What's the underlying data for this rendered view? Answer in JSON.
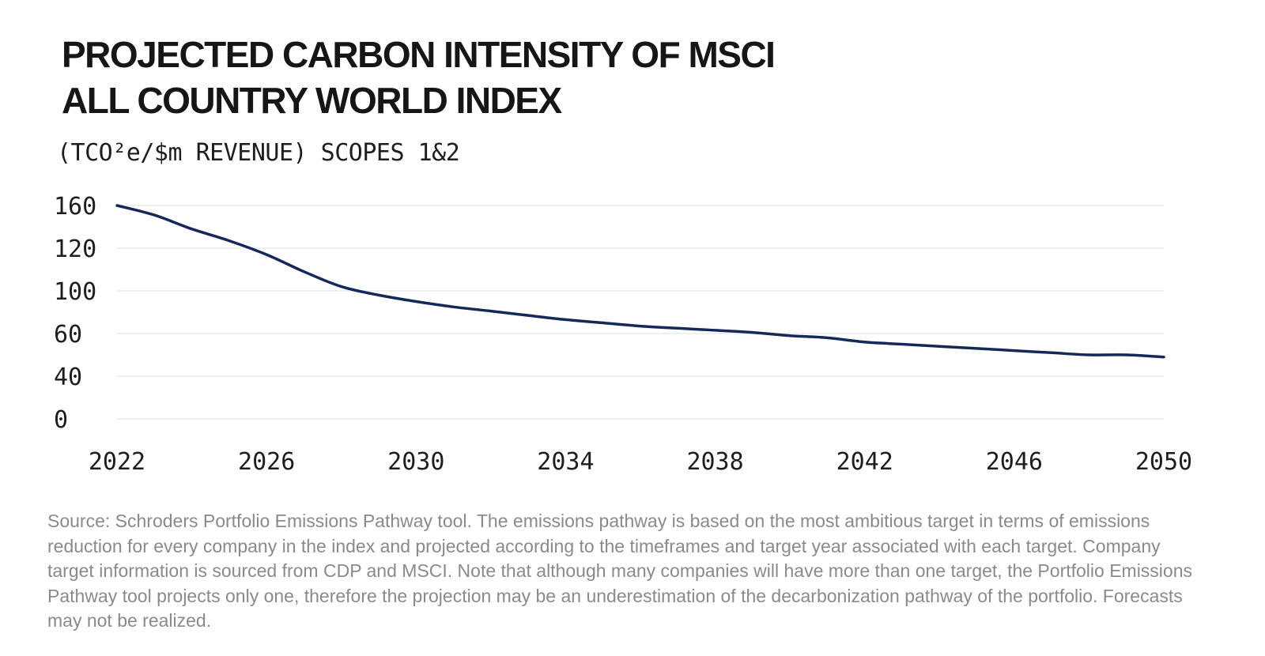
{
  "chart_data": {
    "type": "line",
    "title_lines": [
      "PROJECTED CARBON INTENSITY OF MSCI",
      "ALL COUNTRY WORLD INDEX"
    ],
    "subtitle": "(TCO²e/$m REVENUE) SCOPES 1&2",
    "y_tick_labels": [
      "160",
      "120",
      "100",
      "60",
      "40",
      "0"
    ],
    "x_tick_labels": [
      "2022",
      "2026",
      "2030",
      "2034",
      "2038",
      "2042",
      "2046",
      "2050"
    ],
    "grid": "horizontal",
    "line_color": "#14285a",
    "grid_color": "#ececec",
    "series": [
      {
        "x": [
          2022,
          2023,
          2024,
          2025,
          2026,
          2027,
          2028,
          2029,
          2030,
          2031,
          2032,
          2033,
          2034,
          2035,
          2036,
          2037,
          2038,
          2039,
          2040,
          2041,
          2042,
          2043,
          2044,
          2045,
          2046,
          2047,
          2048,
          2049,
          2050
        ],
        "values": [
          160,
          151,
          138,
          127,
          117,
          109,
          102,
          96,
          90,
          85,
          81,
          77,
          73,
          70,
          67,
          65,
          63,
          61,
          59,
          58,
          56,
          55,
          54,
          53,
          52,
          51,
          50,
          50,
          49
        ]
      }
    ]
  },
  "source_note": "Source: Schroders Portfolio Emissions Pathway tool. The emissions pathway is based on the most ambitious target in terms of emissions reduction for every company in the index and projected according to the timeframes and target year associated with each target. Company target information is sourced from CDP and MSCI. Note that although many companies will have more than one target, the Portfolio Emissions Pathway tool projects only one, therefore the projection may be an underestimation of the decarbonization pathway of the portfolio. Forecasts may not be realized."
}
